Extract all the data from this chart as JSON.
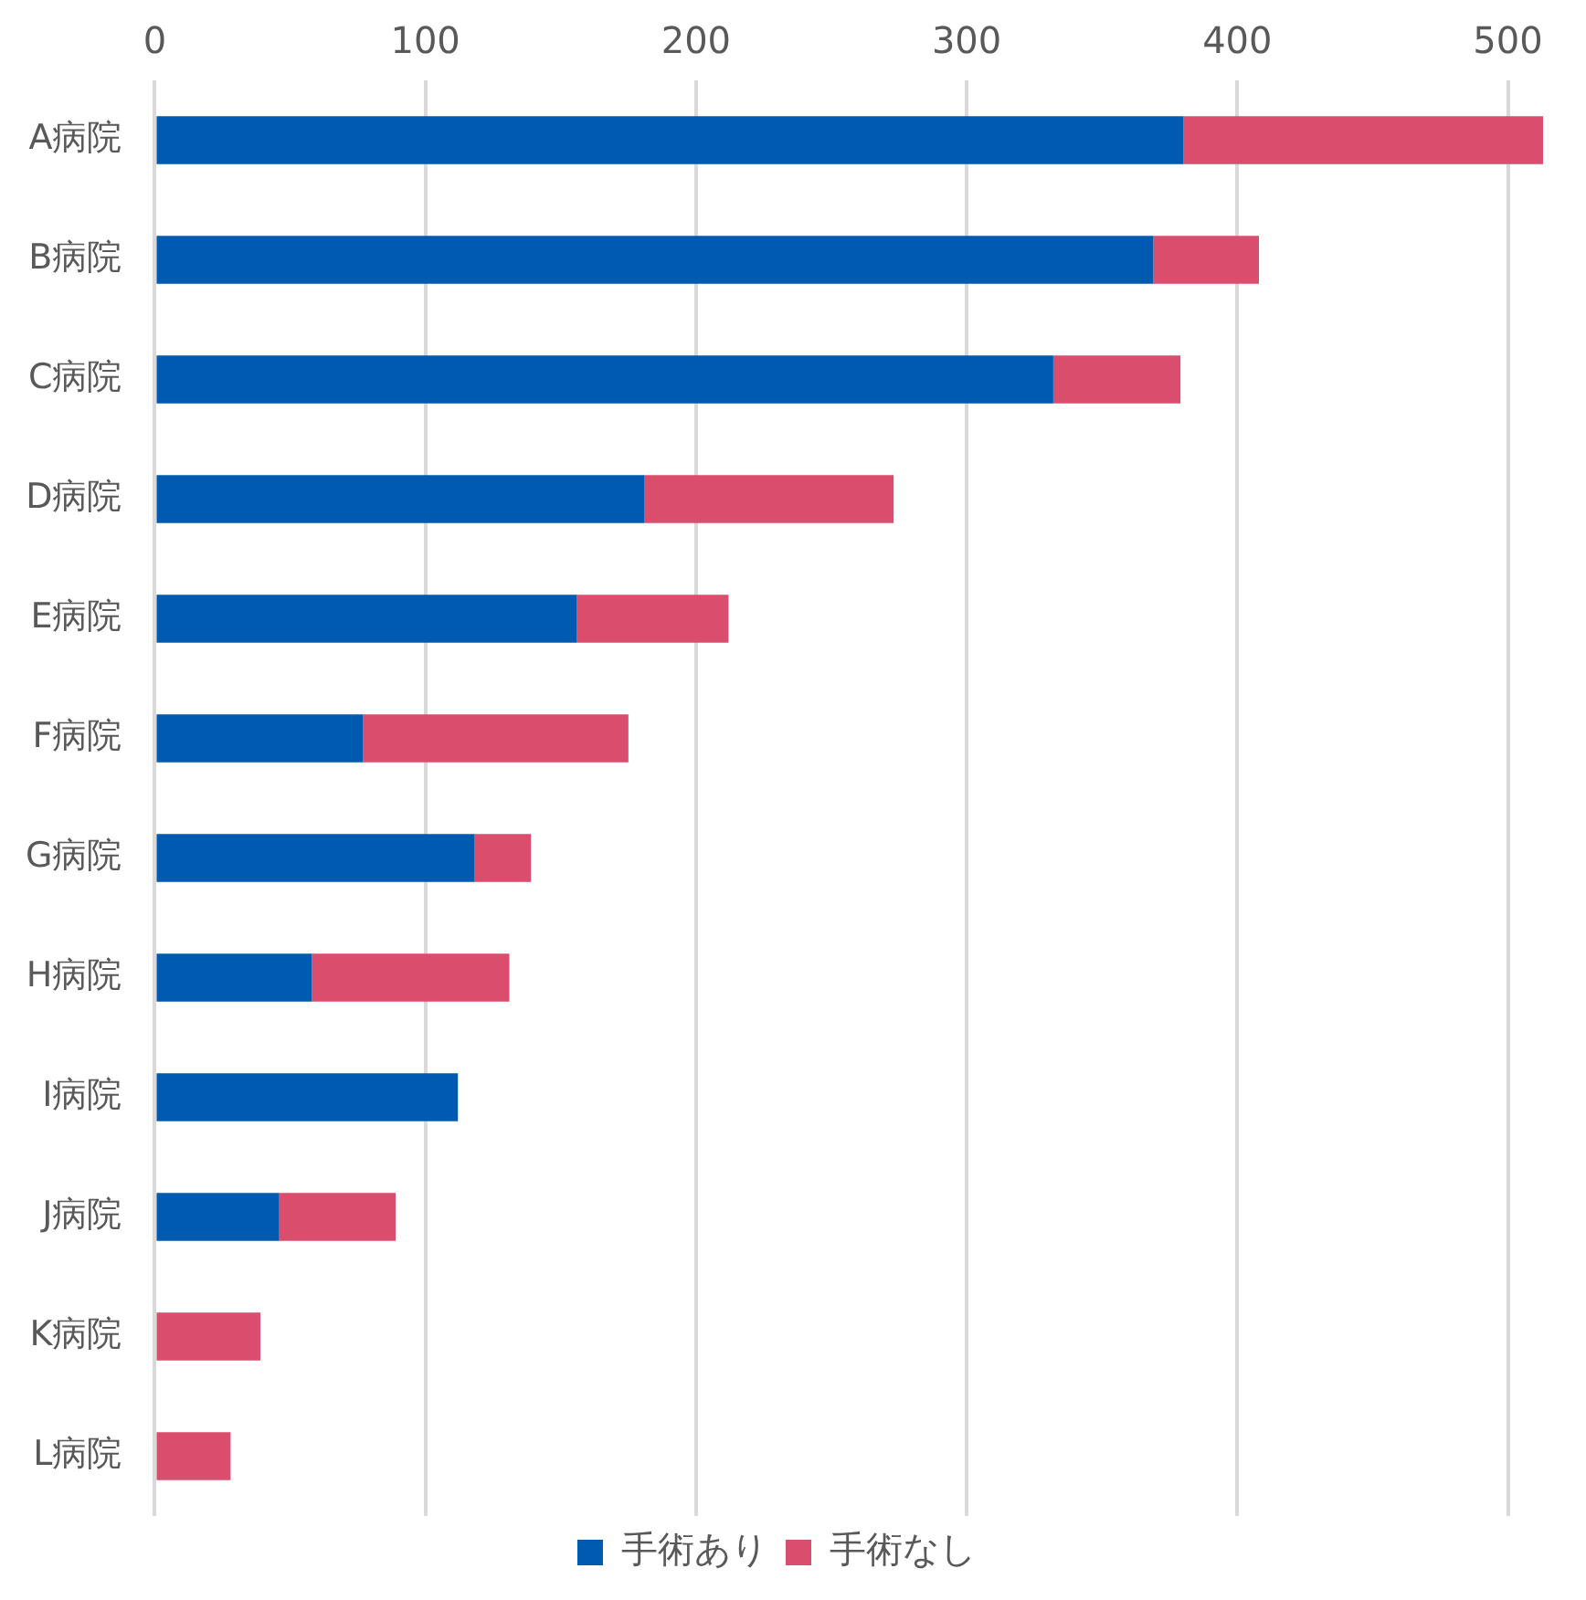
{
  "chart_data": {
    "type": "bar",
    "orientation": "horizontal",
    "stacked": true,
    "categories": [
      "A病院",
      "B病院",
      "C病院",
      "D病院",
      "E病院",
      "F病院",
      "G病院",
      "H病院",
      "I病院",
      "J病院",
      "K病院",
      "L病院"
    ],
    "series": [
      {
        "name": "手術あり",
        "color": "#005bb0",
        "values": [
          380,
          369,
          332,
          181,
          156,
          77,
          118,
          58,
          112,
          46,
          0,
          0
        ]
      },
      {
        "name": "手術なし",
        "color": "#db4d6d",
        "values": [
          133,
          39,
          47,
          92,
          56,
          98,
          21,
          73,
          0,
          43,
          39,
          28
        ]
      }
    ],
    "xlim": [
      0,
      514
    ],
    "xticks": [
      0,
      100,
      200,
      300,
      400,
      500
    ],
    "grid": "x",
    "legend": "bottom"
  }
}
